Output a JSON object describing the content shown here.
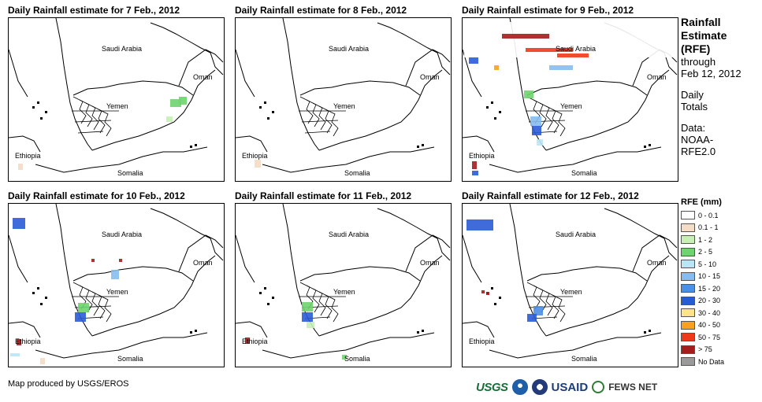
{
  "panels": [
    {
      "title": "Daily Rainfall estimate for 7 Feb., 2012",
      "day": 7
    },
    {
      "title": "Daily Rainfall estimate for 8 Feb., 2012",
      "day": 8
    },
    {
      "title": "Daily Rainfall estimate for 9 Feb., 2012",
      "day": 9
    },
    {
      "title": "Daily Rainfall estimate for 10 Feb., 2012",
      "day": 10
    },
    {
      "title": "Daily Rainfall estimate for 11 Feb., 2012",
      "day": 11
    },
    {
      "title": "Daily Rainfall estimate for 12 Feb., 2012",
      "day": 12
    }
  ],
  "map_labels": {
    "saudi_arabia": "Saudi Arabia",
    "oman": "Oman",
    "yemen": "Yemen",
    "ethiopia": "Ethiopia",
    "somalia": "Somalia"
  },
  "sidebar": {
    "title_line1": "Rainfall",
    "title_line2": "Estimate",
    "title_line3": "(RFE)",
    "through": "through",
    "date": "Feb 12, 2012",
    "daily1": "Daily",
    "daily2": "Totals",
    "data1": "Data:",
    "data2": "NOAA-",
    "data3": "RFE2.0"
  },
  "legend": {
    "title": "RFE (mm)",
    "items": [
      {
        "label": "0 - 0.1",
        "color": "#ffffff"
      },
      {
        "label": "0.1 - 1",
        "color": "#f5dcc4"
      },
      {
        "label": "1 - 2",
        "color": "#c8efb4"
      },
      {
        "label": "2 - 5",
        "color": "#6fd46f"
      },
      {
        "label": "5 - 10",
        "color": "#b9e6f7"
      },
      {
        "label": "10 - 15",
        "color": "#86bdf0"
      },
      {
        "label": "15 - 20",
        "color": "#4d8ee6"
      },
      {
        "label": "20 - 30",
        "color": "#2a5bd7"
      },
      {
        "label": "30 - 40",
        "color": "#fde38a"
      },
      {
        "label": "40 - 50",
        "color": "#f6a21a"
      },
      {
        "label": "50 - 75",
        "color": "#ee3a1a"
      },
      {
        "label": "> 75",
        "color": "#a51c1c"
      },
      {
        "label": "No Data",
        "color": "#9a9a9a"
      }
    ]
  },
  "credit": "Map produced by USGS/EROS",
  "logos": {
    "usgs": "USGS",
    "usaid": "USAID",
    "fews": "FEWS NET"
  }
}
